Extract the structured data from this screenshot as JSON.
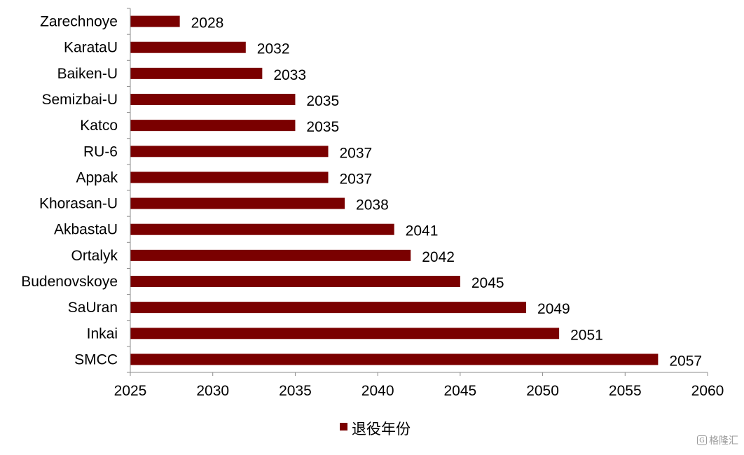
{
  "chart_data": {
    "type": "bar",
    "orientation": "horizontal",
    "categories": [
      "Zarechnoye",
      "KarataU",
      "Baiken-U",
      "Semizbai-U",
      "Katco",
      "RU-6",
      "Appak",
      "Khorasan-U",
      "AkbastaU",
      "Ortalyk",
      "Budenovskoye",
      "SaUran",
      "Inkai",
      "SMCC"
    ],
    "series": [
      {
        "name": "退役年份",
        "values": [
          2028,
          2032,
          2033,
          2035,
          2035,
          2037,
          2037,
          2038,
          2041,
          2042,
          2045,
          2049,
          2051,
          2057
        ],
        "color": "#7a0000"
      }
    ],
    "data_labels": [
      "2028",
      "2032",
      "2033",
      "2035",
      "2035",
      "2037",
      "2037",
      "2038",
      "2041",
      "2042",
      "2045",
      "2049",
      "2051",
      "2057"
    ],
    "xlim": [
      2025,
      2060
    ],
    "xticks": [
      2025,
      2030,
      2035,
      2040,
      2045,
      2050,
      2055,
      2060
    ],
    "xtick_labels": [
      "2025",
      "2030",
      "2035",
      "2040",
      "2045",
      "2050",
      "2055",
      "2060"
    ],
    "grid": false,
    "legend": {
      "placement": "bottom-center",
      "label": "退役年份"
    }
  },
  "watermark": {
    "icon": "G",
    "text": "格隆汇"
  }
}
